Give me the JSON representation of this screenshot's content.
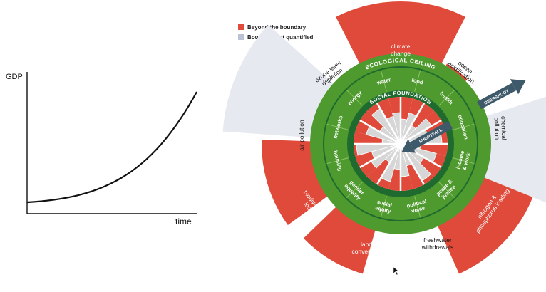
{
  "gdp_graph": {
    "y_label": "GDP",
    "x_label": "time"
  },
  "legend": {
    "beyond_label": "Beyond the boundary",
    "not_quantified_label": "Boundary not quantified",
    "beyond_color": "#e04a3b",
    "not_quantified_color": "#b9c3d3"
  },
  "doughnut": {
    "ceiling_title": "ECOLOGICAL CEILING",
    "foundation_title": "SOCIAL FOUNDATION",
    "overshoot_label": "OVERSHOOT",
    "shortfall_label": "SHORTFALL",
    "outer_labels": {
      "climate_change": [
        "climate",
        "change"
      ],
      "ocean_acidification": [
        "ocean",
        "acidification"
      ],
      "chemical_pollution": [
        "chemical",
        "pollution"
      ],
      "nitrogen_phosphorus": [
        "nitrogen &",
        "phosphorus loading"
      ],
      "freshwater": [
        "freshwater",
        "withdrawals"
      ],
      "land_conversion": [
        "land",
        "conversion"
      ],
      "biodiversity": [
        "biodiversity",
        "loss"
      ],
      "air_pollution": [
        "air pollution"
      ],
      "ozone": [
        "ozone layer",
        "depletion"
      ]
    },
    "social_labels": {
      "water": [
        "water"
      ],
      "food": [
        "food"
      ],
      "health": [
        "health"
      ],
      "education": [
        "education"
      ],
      "income": [
        "income",
        "& work"
      ],
      "peace": [
        "peace &",
        "justice"
      ],
      "political": [
        "political",
        "voice"
      ],
      "equity": [
        "social",
        "equity"
      ],
      "gender": [
        "gender",
        "equality"
      ],
      "housing": [
        "housing"
      ],
      "networks": [
        "networks"
      ],
      "energy": [
        "energy"
      ]
    },
    "colors": {
      "green": "#4e9a2e",
      "dark_green": "#1e6a2f",
      "red": "#e04a3b",
      "grey": "#e6e9ef",
      "arrow": "#3e5a6a"
    }
  }
}
